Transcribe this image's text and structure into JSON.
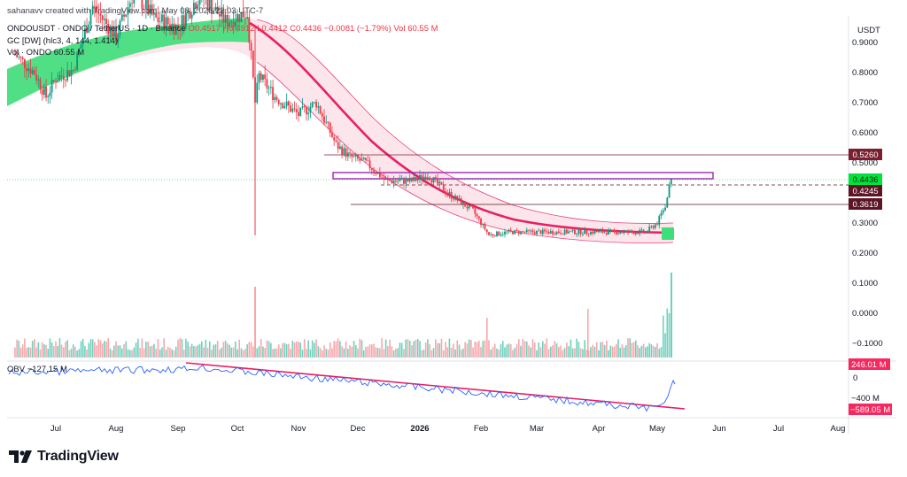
{
  "header": {
    "created_by": "sahanavv created with TradingView.com, May 08, 2026 22:03 UTC-7",
    "symbol": "ONDOUSDT · ONDO / TetherUS · 1D · Binance",
    "ohlc": "O0.4517 H0.4912 L0.4412 C0.4436 −0.0081 (−1.79%)",
    "vol_label": "Vol 60.55 M",
    "indicator_gc": "GC [DW] (hlc3, 4, 144, 1.414)",
    "indicator_vol": "Vol · ONDO 60.55 M",
    "obv_label": "OBV −127.15 M"
  },
  "brand": {
    "name": "TradingView"
  },
  "chart_data": {
    "type": "candlestick",
    "symbol": "ONDOUSDT",
    "price_axis_label": "USDT",
    "price_ticks": [
      "0.9000",
      "0.8000",
      "0.7000",
      "0.6000",
      "0.5000",
      "0.3000",
      "0.2000",
      "0.1000",
      "0.0000",
      "−0.1000"
    ],
    "price_range": [
      -0.13,
      0.98
    ],
    "x_ticks": [
      "Jul",
      "Aug",
      "Sep",
      "Oct",
      "Nov",
      "Dec",
      "2026",
      "Feb",
      "Mar",
      "Apr",
      "May",
      "Jun",
      "Jul",
      "Aug"
    ],
    "price_markers": [
      {
        "value": "0.5260",
        "style": "line"
      },
      {
        "value": "0.4436",
        "style": "last-price"
      },
      {
        "value": "0.4245",
        "style": "dashed"
      },
      {
        "value": "0.3619",
        "style": "line"
      }
    ],
    "obv_axis": [
      "246.01 M",
      "0",
      "−400 M",
      "−589.05 M"
    ],
    "close_series": [
      {
        "d": "2025-06-10",
        "c": 0.86
      },
      {
        "d": "2025-06-20",
        "c": 0.8
      },
      {
        "d": "2025-06-26",
        "c": 0.72
      },
      {
        "d": "2025-07-01",
        "c": 0.78
      },
      {
        "d": "2025-07-10",
        "c": 0.81
      },
      {
        "d": "2025-07-20",
        "c": 1.02
      },
      {
        "d": "2025-08-01",
        "c": 0.92
      },
      {
        "d": "2025-08-10",
        "c": 1.07
      },
      {
        "d": "2025-08-20",
        "c": 0.98
      },
      {
        "d": "2025-09-01",
        "c": 0.95
      },
      {
        "d": "2025-09-12",
        "c": 1.06
      },
      {
        "d": "2025-09-25",
        "c": 0.97
      },
      {
        "d": "2025-10-06",
        "c": 1.0
      },
      {
        "d": "2025-10-10",
        "c": 0.7
      },
      {
        "d": "2025-10-12",
        "c": 0.79
      },
      {
        "d": "2025-10-20",
        "c": 0.72
      },
      {
        "d": "2025-11-01",
        "c": 0.66
      },
      {
        "d": "2025-11-10",
        "c": 0.7
      },
      {
        "d": "2025-11-20",
        "c": 0.56
      },
      {
        "d": "2025-11-27",
        "c": 0.52
      },
      {
        "d": "2025-12-05",
        "c": 0.5
      },
      {
        "d": "2025-12-15",
        "c": 0.44
      },
      {
        "d": "2025-12-28",
        "c": 0.44
      },
      {
        "d": "2026-01-05",
        "c": 0.46
      },
      {
        "d": "2026-01-15",
        "c": 0.4
      },
      {
        "d": "2026-01-28",
        "c": 0.34
      },
      {
        "d": "2026-02-05",
        "c": 0.26
      },
      {
        "d": "2026-02-15",
        "c": 0.27
      },
      {
        "d": "2026-03-01",
        "c": 0.27
      },
      {
        "d": "2026-03-15",
        "c": 0.27
      },
      {
        "d": "2026-03-28",
        "c": 0.27
      },
      {
        "d": "2026-04-10",
        "c": 0.27
      },
      {
        "d": "2026-04-25",
        "c": 0.27
      },
      {
        "d": "2026-05-01",
        "c": 0.3
      },
      {
        "d": "2026-05-05",
        "c": 0.36
      },
      {
        "d": "2026-05-08",
        "c": 0.4436
      }
    ]
  }
}
